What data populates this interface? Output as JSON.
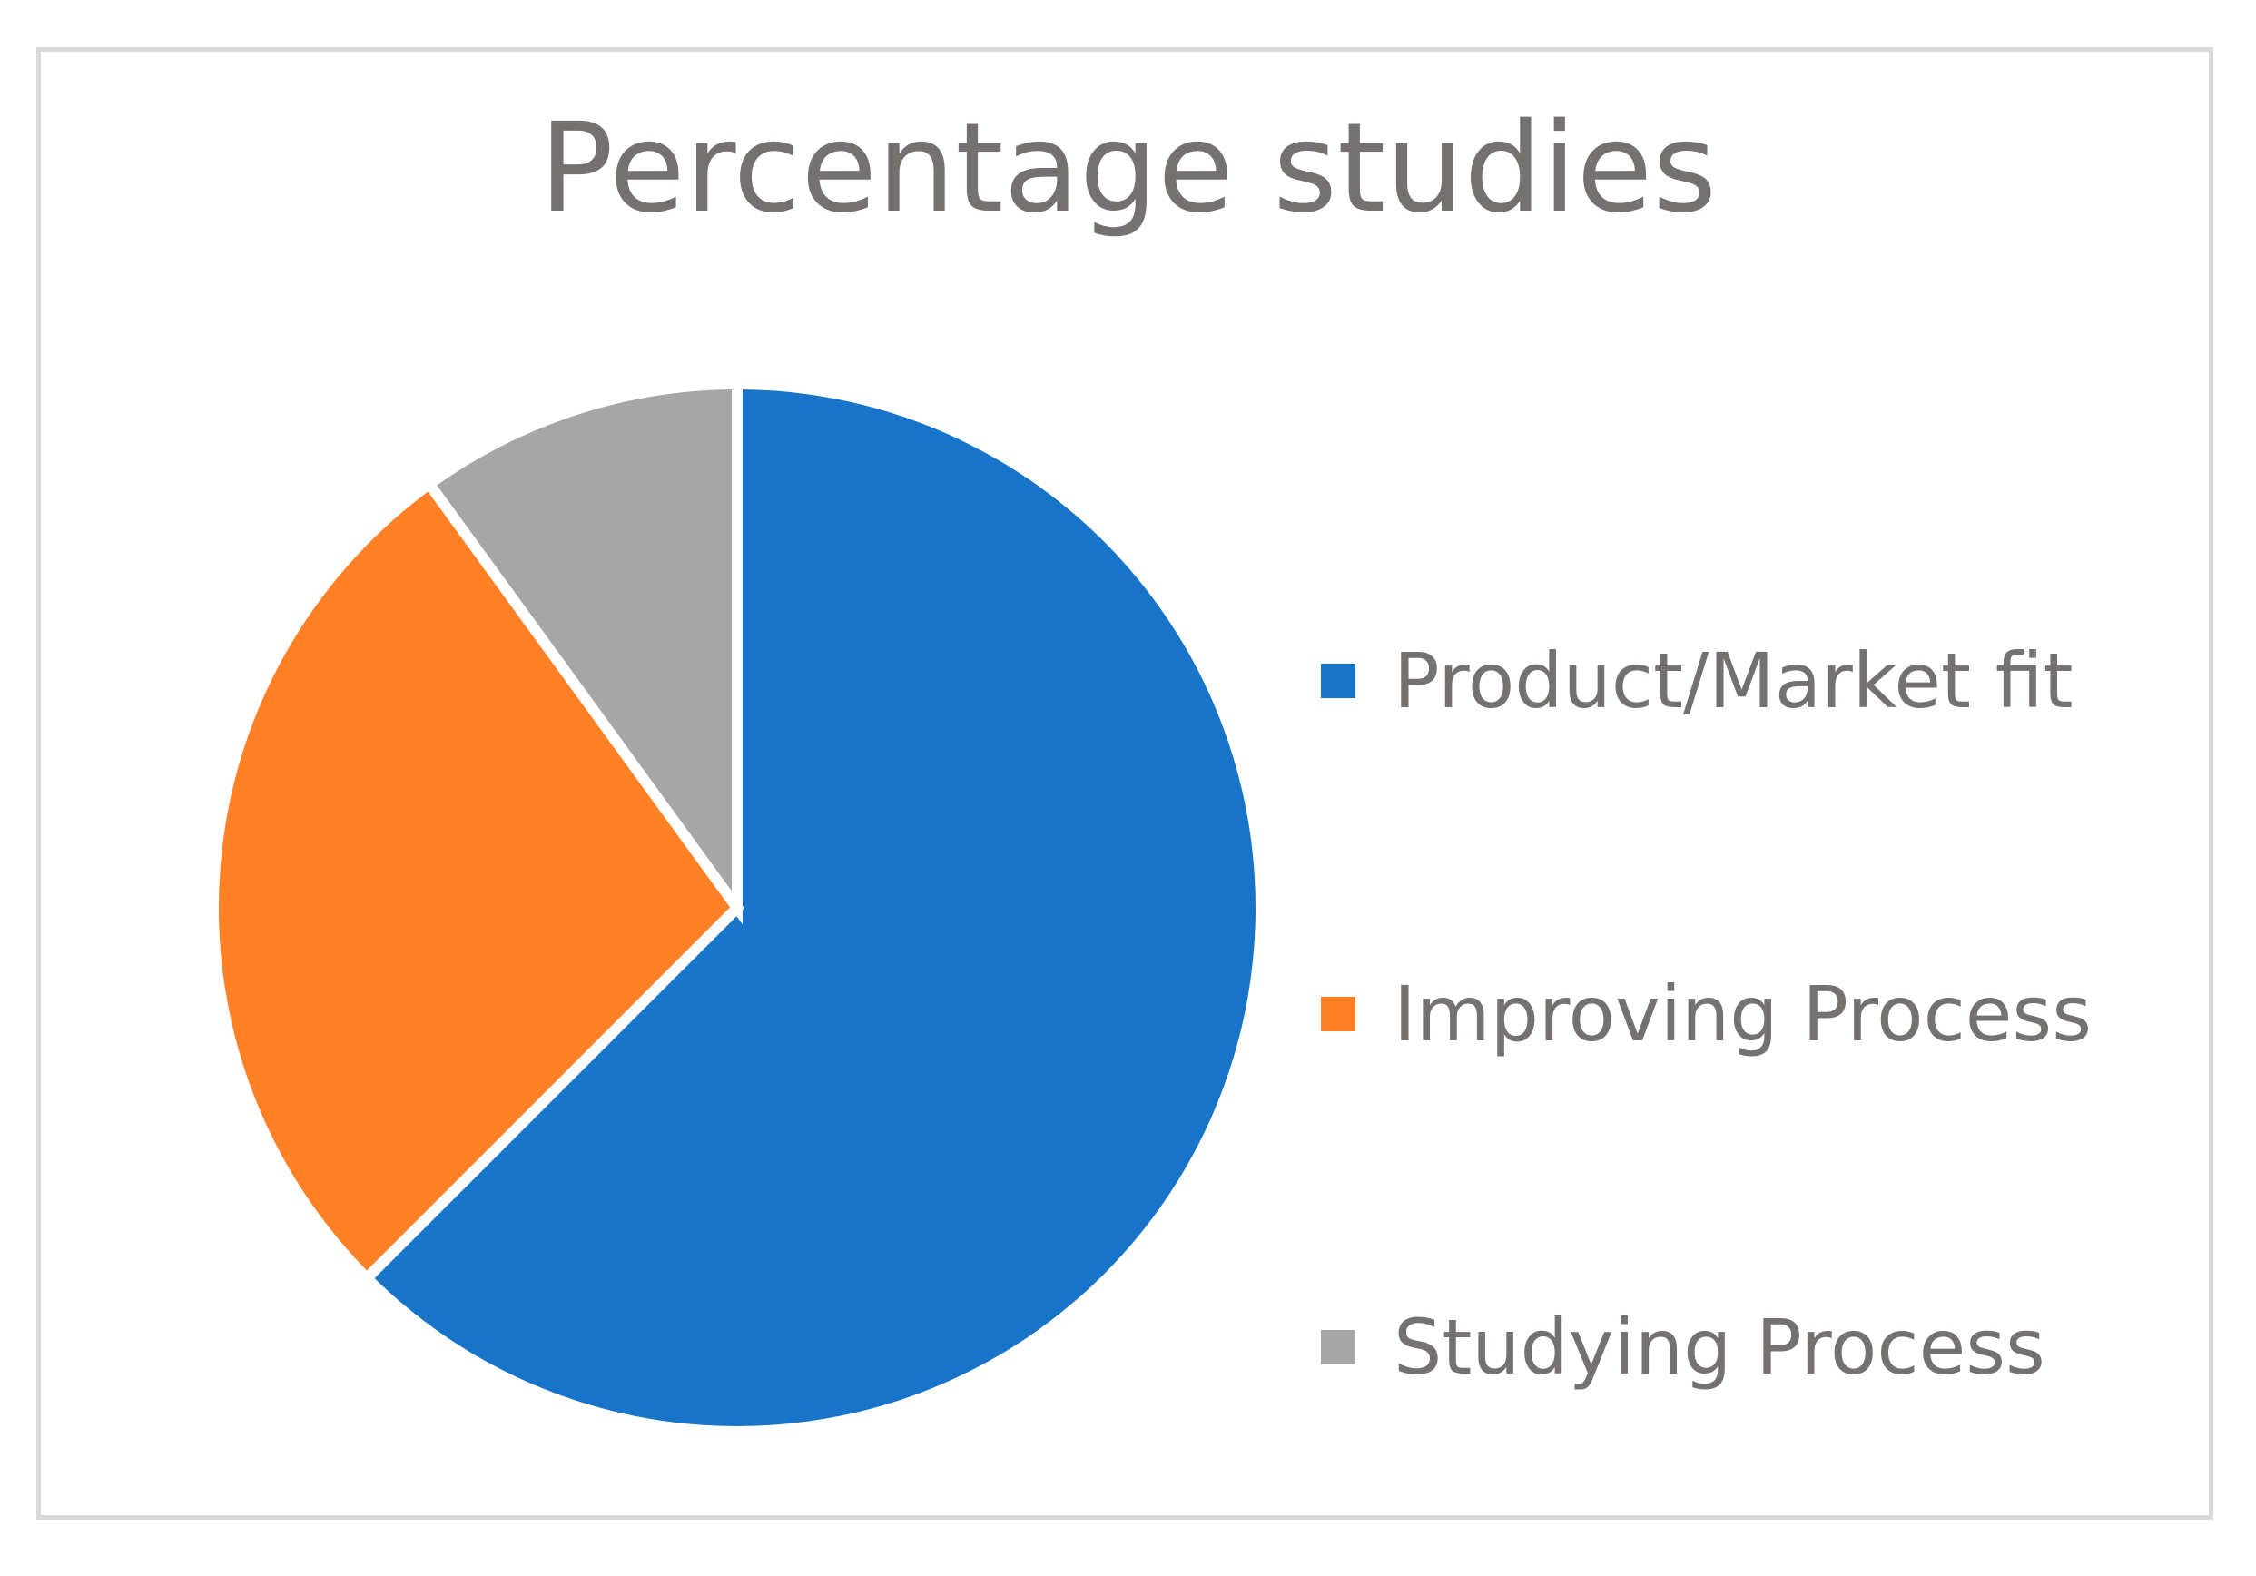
{
  "chart_data": {
    "type": "pie",
    "title": "Percentage studies",
    "categories": [
      "Product/Market fit",
      "Improving Process",
      "Studying Process"
    ],
    "values": [
      62.5,
      27.5,
      10.0
    ],
    "unit": "%",
    "colors": [
      "#1874C8",
      "#FF8025",
      "#A6A6A6"
    ],
    "start_angle": "12 o'clock",
    "direction": "clockwise",
    "legend_position": "right"
  }
}
